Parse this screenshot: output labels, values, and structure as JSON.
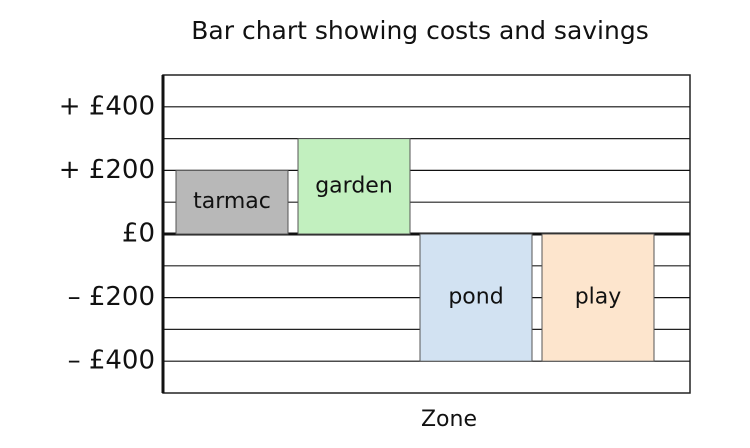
{
  "chart_data": {
    "type": "bar",
    "title": "Bar chart showing costs and savings",
    "x_label": "Zone",
    "categories": [
      "tarmac",
      "garden",
      "pond",
      "play"
    ],
    "values": [
      200,
      300,
      -400,
      -400
    ],
    "colors": [
      "#b8b8b8",
      "#c2f0bf",
      "#d2e2f2",
      "#fde5cd"
    ],
    "ylim": [
      -500,
      500
    ],
    "yticks": [
      {
        "value": -400,
        "label": "– £400"
      },
      {
        "value": -200,
        "label": "– £200"
      },
      {
        "value": 0,
        "label": "£0"
      },
      {
        "value": 200,
        "label": "+ £200"
      },
      {
        "value": 400,
        "label": "+ £400"
      }
    ],
    "minor_gridlines": [
      -300,
      -100,
      100,
      300
    ],
    "grid": true
  }
}
